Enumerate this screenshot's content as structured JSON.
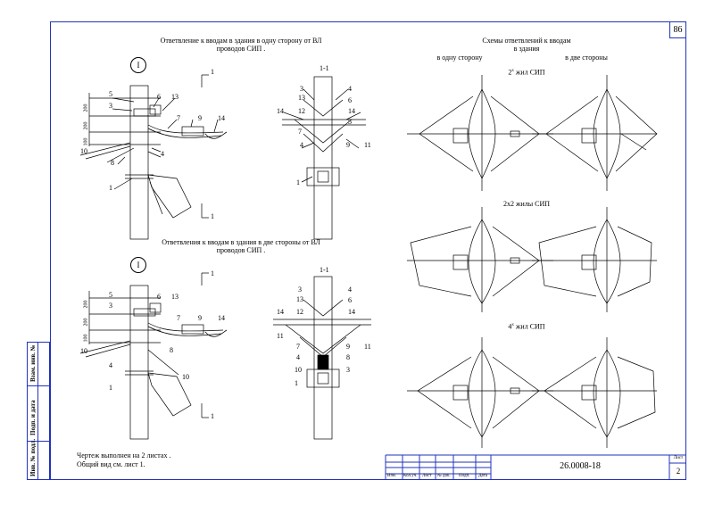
{
  "page_number": "86",
  "left_titles": {
    "top": "Ответвление к вводам в здания в одну сторону от ВЛ\nпроводов СИП .",
    "bottom": "Ответвления к вводам в здания в две стороны от ВЛ\nпроводов СИП ."
  },
  "section_labels": {
    "view_marker": "I",
    "cut_marker": "1",
    "section_title": "1-1"
  },
  "dimensions": [
    "200",
    "200",
    "100"
  ],
  "part_numbers_top_left": [
    "5",
    "3",
    "6",
    "13",
    "7",
    "9",
    "14",
    "10",
    "8",
    "4",
    "1"
  ],
  "part_numbers_top_section": [
    "3",
    "4",
    "13",
    "6",
    "12",
    "14",
    "14",
    "7",
    "5",
    "4",
    "9",
    "11",
    "1"
  ],
  "part_numbers_bottom_left": [
    "5",
    "3",
    "6",
    "13",
    "7",
    "9",
    "14",
    "10",
    "8",
    "4",
    "1",
    "10"
  ],
  "part_numbers_bottom_section": [
    "3",
    "4",
    "13",
    "6",
    "12",
    "14",
    "14",
    "11",
    "7",
    "9",
    "11",
    "4",
    "8",
    "10",
    "3",
    "1"
  ],
  "right_header": {
    "line1": "Схемы ответвлений к вводам",
    "line2": "в здания",
    "col_left": "в одну сторону",
    "col_right": "в две стороны"
  },
  "scheme_titles": {
    "s1_prefix": "2",
    "s1_sup": "x",
    "s1_suffix": " жил СИП",
    "s2": "2х2 жилы СИП",
    "s3_prefix": "4",
    "s3_sup": "x",
    "s3_suffix": " жил СИП"
  },
  "note": {
    "line1": "Чертеж выполнен на 2 листах .",
    "line2": "Общий вид см. лист 1."
  },
  "stamp": {
    "doc_code": "26.0008-18",
    "sheet_label": "Лист",
    "sheet_number": "2",
    "cols": [
      "Изм.",
      "Кол.уч.",
      "Лист",
      "№ док.",
      "Подп.",
      "Дата"
    ]
  },
  "side_labels": [
    "Взам. инв. №",
    "Подп. и дата",
    "Инв. № подл."
  ],
  "colors": {
    "frame": "#2233bb",
    "ink": "#000000"
  }
}
